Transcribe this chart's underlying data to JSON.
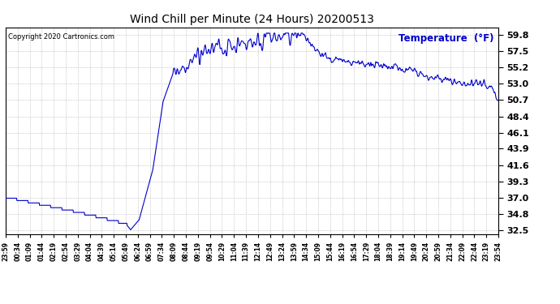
{
  "title": "Wind Chill per Minute (24 Hours) 20200513",
  "copyright_text": "Copyright 2020 Cartronics.com",
  "legend_label": "Temperature  (°F)",
  "line_color": "#0000cc",
  "background_color": "#ffffff",
  "grid_color": "#bbbbbb",
  "yticks": [
    32.5,
    34.8,
    37.0,
    39.3,
    41.6,
    43.9,
    46.1,
    48.4,
    50.7,
    53.0,
    55.2,
    57.5,
    59.8
  ],
  "xtick_labels": [
    "23:59",
    "00:34",
    "01:09",
    "01:44",
    "02:19",
    "02:54",
    "03:29",
    "04:04",
    "04:39",
    "05:14",
    "05:49",
    "06:24",
    "06:59",
    "07:34",
    "08:09",
    "08:44",
    "09:19",
    "09:54",
    "10:29",
    "11:04",
    "11:39",
    "12:14",
    "12:49",
    "13:24",
    "13:59",
    "14:34",
    "15:09",
    "15:44",
    "16:19",
    "16:54",
    "17:29",
    "18:04",
    "18:39",
    "19:14",
    "19:49",
    "20:24",
    "20:59",
    "21:34",
    "22:09",
    "22:44",
    "23:19",
    "23:54"
  ],
  "ylim": [
    32.0,
    60.8
  ],
  "figsize": [
    6.9,
    3.75
  ],
  "dpi": 100,
  "keypoints_x": [
    0,
    50,
    120,
    200,
    270,
    330,
    355,
    365,
    390,
    430,
    460,
    490,
    530,
    570,
    620,
    680,
    740,
    800,
    840,
    855,
    870,
    910,
    950,
    980,
    1020,
    1060,
    1100,
    1140,
    1180,
    1220,
    1260,
    1300,
    1340,
    1380,
    1420,
    1439
  ],
  "keypoints_y": [
    37.0,
    36.5,
    35.8,
    35.0,
    34.2,
    33.5,
    33.2,
    32.6,
    34.0,
    41.0,
    50.5,
    54.5,
    56.0,
    57.2,
    57.8,
    58.5,
    59.0,
    59.4,
    59.6,
    59.7,
    59.5,
    57.5,
    56.5,
    56.2,
    55.8,
    55.6,
    55.5,
    55.2,
    54.8,
    54.2,
    53.5,
    53.2,
    53.1,
    53.0,
    52.5,
    50.7
  ]
}
